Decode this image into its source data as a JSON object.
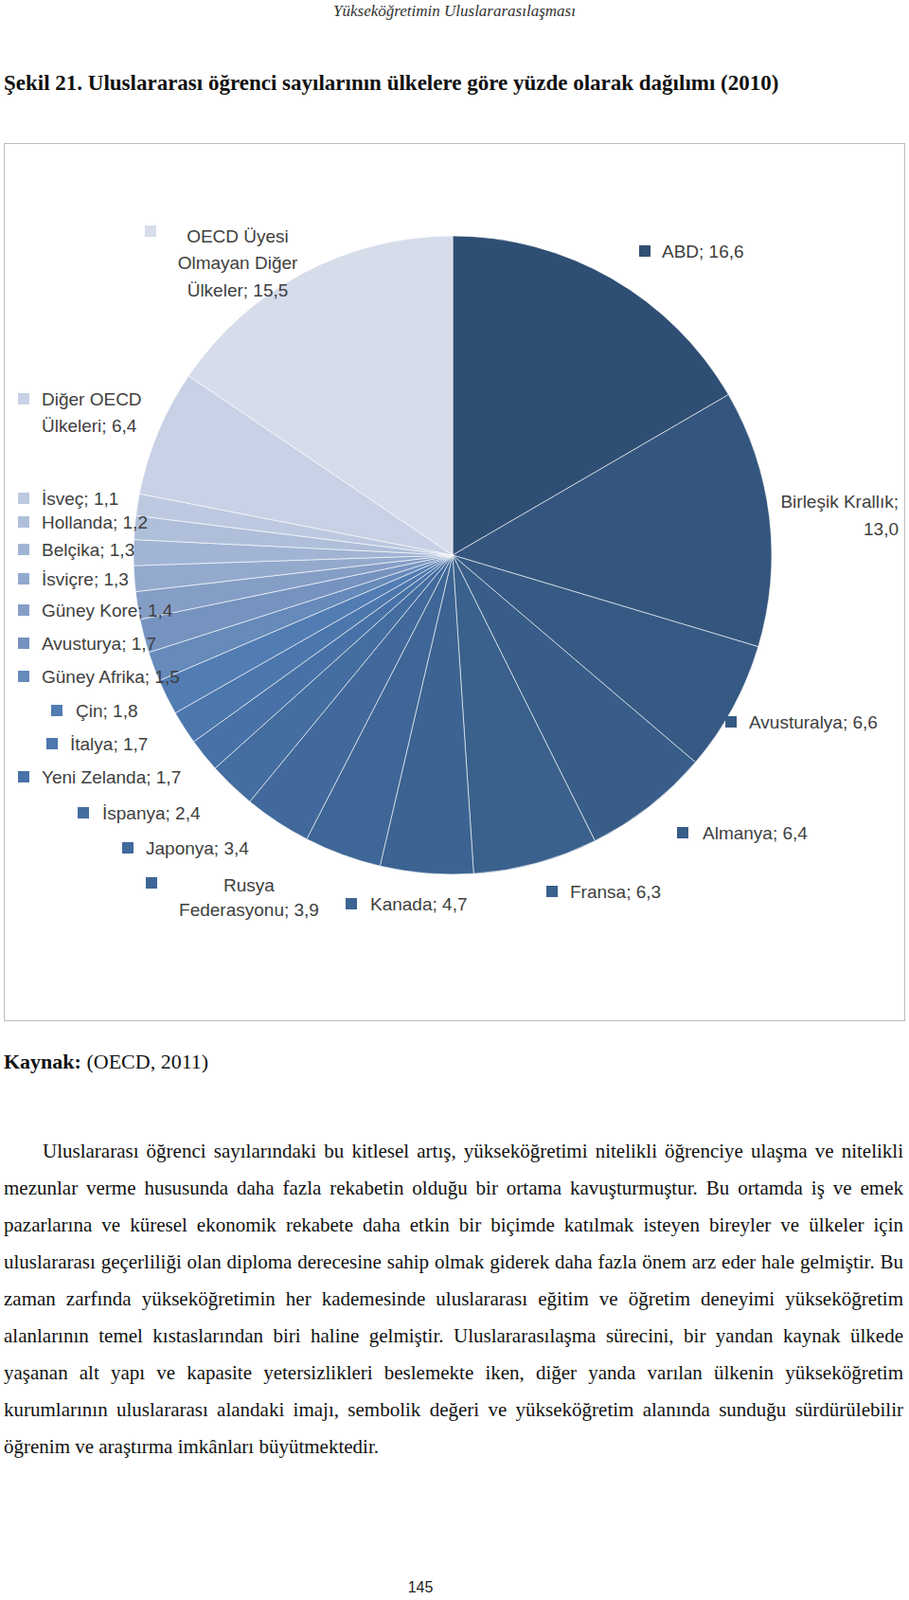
{
  "running_head": "Yükseköğretimin Uluslararasılaşması",
  "caption": "Şekil 21. Uluslararası öğrenci sayılarının ülkelere göre yüzde olarak dağılımı (2010)",
  "chart_data": {
    "type": "pie",
    "categories": [
      "ABD",
      "Birleşik Krallık",
      "Avusturalya",
      "Almanya",
      "Fransa",
      "Kanada",
      "Rusya Federasyonu",
      "Japonya",
      "İspanya",
      "Yeni Zelanda",
      "İtalya",
      "Çin",
      "Güney Afrika",
      "Avusturya",
      "Güney Kore",
      "İsviçre",
      "Belçika",
      "Hollanda",
      "İsveç",
      "Diğer OECD Ülkeleri",
      "OECD Üyesi Olmayan Diğer Ülkeler"
    ],
    "values": [
      16.6,
      13.0,
      6.6,
      6.4,
      6.3,
      4.7,
      3.9,
      3.4,
      2.4,
      1.7,
      1.7,
      1.8,
      1.5,
      1.7,
      1.4,
      1.3,
      1.3,
      1.2,
      1.1,
      6.4,
      15.5
    ],
    "value_labels": [
      "ABD; 16,6",
      "Birleşik Krallık; 13,0",
      "Avusturalya; 6,6",
      "Almanya; 6,4",
      "Fransa; 6,3",
      "Kanada; 4,7",
      "Rusya Federasyonu; 3,9",
      "Japonya; 3,4",
      "İspanya; 2,4",
      "Yeni Zelanda; 1,7",
      "İtalya; 1,7",
      "Çin; 1,8",
      "Güney Afrika; 1,5",
      "Avusturya; 1,7",
      "Güney Kore; 1,4",
      "İsviçre; 1,3",
      "Belçika; 1,3",
      "Hollanda; 1,2",
      "İsveç; 1,1",
      "Diğer OECD Ülkeleri; 6,4",
      "OECD Üyesi Olmayan Diğer Ülkeler; 15,5"
    ],
    "colors": [
      "#2F4E73",
      "#34567E",
      "#365A84",
      "#385D88",
      "#3A608C",
      "#3C6391",
      "#3E6696",
      "#41699B",
      "#446DA0",
      "#4872A7",
      "#4C77AD",
      "#527DB3",
      "#668ABA",
      "#7693C0",
      "#859EC6",
      "#93AACD",
      "#A1B4D4",
      "#AFBFDA",
      "#BCC9E0",
      "#C8D1E5",
      "#D6DCEA"
    ],
    "data_labels": true
  },
  "source": {
    "label": "Kaynak:",
    "text": "(OECD, 2011)"
  },
  "paragraph": "Uluslararası öğrenci sayılarındaki bu kitlesel artış, yükseköğretimi nitelikli öğrenciye ulaşma ve nitelikli mezunlar verme hususunda daha fazla rekabetin olduğu bir ortama kavuşturmuştur. Bu ortamda iş ve emek pazarlarına ve küresel ekonomik rekabete daha etkin bir biçimde katılmak isteyen bireyler ve ülkeler için uluslararası geçerliliği olan diploma derecesine sahip olmak giderek daha fazla önem arz eder hale gelmiştir. Bu zaman zarfında yükseköğretimin her kademesinde uluslararası eğitim ve öğretim deneyimi yükseköğretim alanlarının temel kıstaslarından biri haline gelmiştir. Uluslararasılaşma sürecini, bir yandan kaynak ülkede yaşanan alt yapı ve kapasite yetersizlikleri beslemekte iken, diğer yanda varılan ülkenin yükseköğretim kurumlarının uluslararası alandaki imajı, sembolik değeri ve yükseköğretim alanında sunduğu sürdürülebilir öğrenim ve araştırma imkânları büyütmektedir.",
  "page_number": "145"
}
